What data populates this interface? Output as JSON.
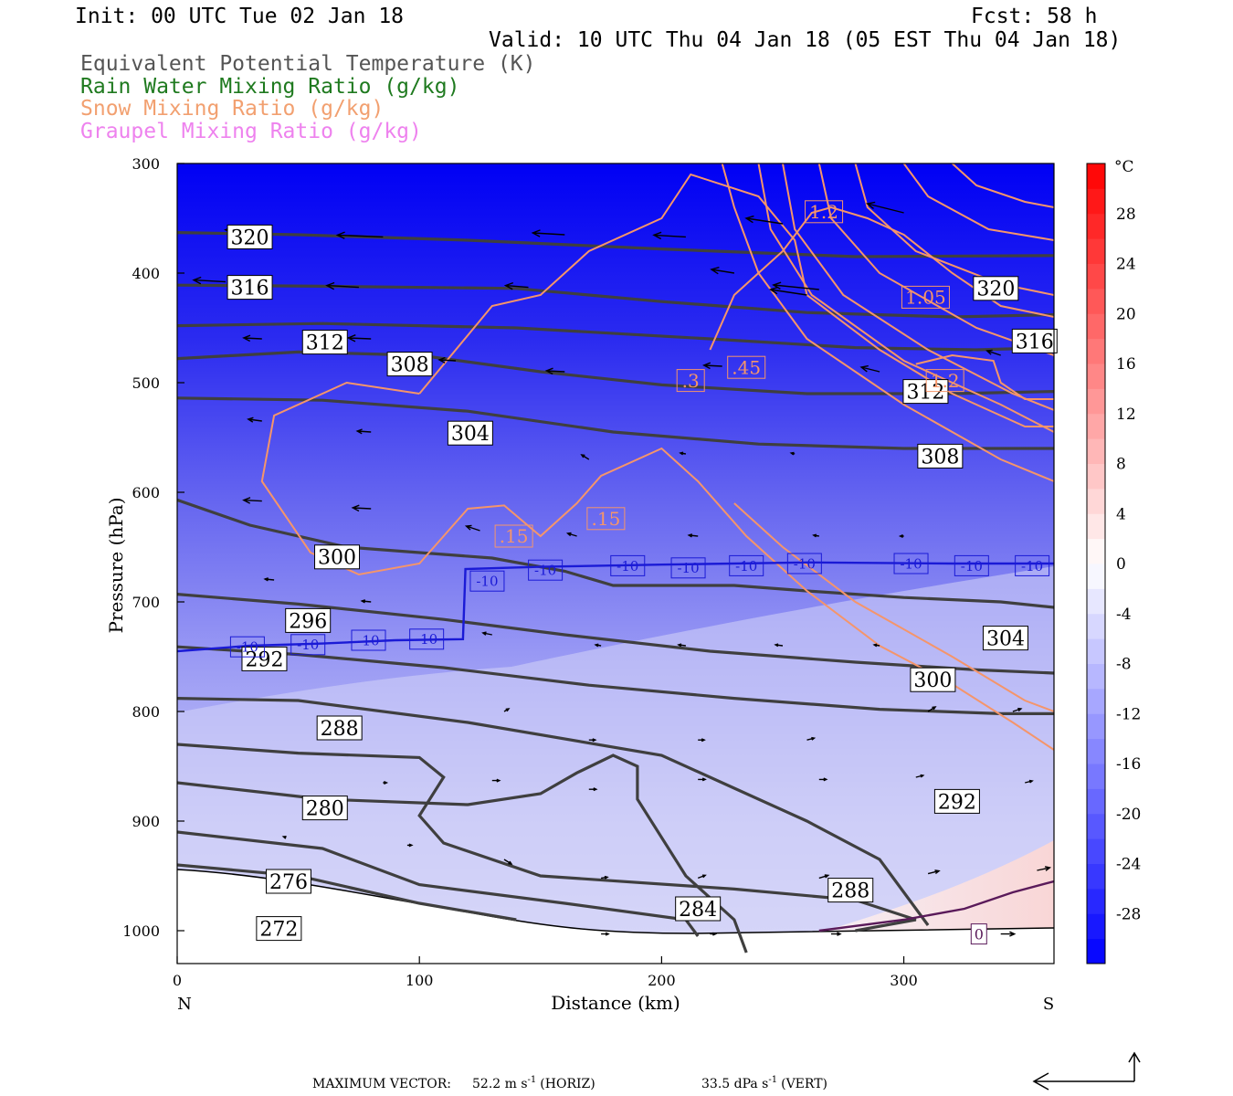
{
  "header": {
    "init": "Init: 00 UTC Tue 02 Jan 18",
    "fcst": "Fcst:   58 h",
    "valid": "Valid: 10 UTC Thu 04 Jan 18 (05 EST Thu 04 Jan 18)",
    "fields": [
      {
        "text": "Equivalent Potential Temperature (K)",
        "color": "#555555"
      },
      {
        "text": "Rain Water Mixing Ratio (g/kg)",
        "color": "#1f7a1f"
      },
      {
        "text": "Snow Mixing Ratio (g/kg)",
        "color": "#f2a070"
      },
      {
        "text": "Graupel Mixing Ratio (g/kg)",
        "color": "#ee82ee"
      }
    ]
  },
  "footer": {
    "max_vector_label": "MAXIMUM VECTOR:",
    "horiz_value": "52.2 m s",
    "horiz_exp": "-1",
    "horiz_tag": "(HORIZ)",
    "vert_value": "33.5 dPa s",
    "vert_exp": "-1",
    "vert_tag": "(VERT)"
  },
  "colors": {
    "theta_e": "#3f3f3f",
    "snow": "#f5956a",
    "temp_line": "#1a1ad6",
    "zero_line": "#5a1a5a",
    "cold": "#0000ff",
    "warm": "#ff0000"
  },
  "chart_data": {
    "type": "heatmap",
    "title": "",
    "xlabel": "Distance (km)",
    "ylabel": "Pressure (hPa)",
    "xlim": [
      0,
      362
    ],
    "ylim": [
      1030,
      300
    ],
    "x_ticks": [
      0,
      100,
      200,
      300
    ],
    "y_ticks": [
      300,
      400,
      500,
      600,
      700,
      800,
      900,
      1000
    ],
    "x_end_labels": {
      "left": "N",
      "right": "S"
    },
    "colorbar": {
      "unit": "°C",
      "ticks": [
        28,
        24,
        20,
        16,
        12,
        8,
        4,
        0,
        -4,
        -8,
        -12,
        -16,
        -20,
        -24,
        -28
      ],
      "range": [
        -32,
        32
      ]
    },
    "theta_e_labels": [
      {
        "value": "320",
        "x": 30,
        "p": 367
      },
      {
        "value": "316",
        "x": 30,
        "p": 413
      },
      {
        "value": "312",
        "x": 61,
        "p": 463
      },
      {
        "value": "308",
        "x": 96,
        "p": 483
      },
      {
        "value": "304",
        "x": 121,
        "p": 546
      },
      {
        "value": "300",
        "x": 66,
        "p": 659
      },
      {
        "value": "296",
        "x": 54,
        "p": 717
      },
      {
        "value": "292",
        "x": 36,
        "p": 752
      },
      {
        "value": "288",
        "x": 67,
        "p": 815
      },
      {
        "value": "280",
        "x": 61,
        "p": 888
      },
      {
        "value": "276",
        "x": 46,
        "p": 955
      },
      {
        "value": "272",
        "x": 42,
        "p": 998
      },
      {
        "value": "320",
        "x": 338,
        "p": 414
      },
      {
        "value": "316",
        "x": 354,
        "p": 462
      },
      {
        "value": "312",
        "x": 309,
        "p": 508
      },
      {
        "value": "308",
        "x": 315,
        "p": 567
      },
      {
        "value": "304",
        "x": 342,
        "p": 733
      },
      {
        "value": "300",
        "x": 312,
        "p": 771
      },
      {
        "value": "292",
        "x": 322,
        "p": 882
      },
      {
        "value": "288",
        "x": 278,
        "p": 963
      },
      {
        "value": "284",
        "x": 215,
        "p": 980
      }
    ],
    "snow_labels": [
      {
        "value": "1.2",
        "x": 267,
        "p": 344
      },
      {
        "value": "1.05",
        "x": 309,
        "p": 422
      },
      {
        "value": ".45",
        "x": 235,
        "p": 486
      },
      {
        "value": ".3",
        "x": 212,
        "p": 498
      },
      {
        "value": "1.2",
        "x": 317,
        "p": 498
      },
      {
        "value": ".15",
        "x": 177,
        "p": 624
      },
      {
        "value": ".15",
        "x": 139,
        "p": 640
      }
    ],
    "temp_labels": [
      {
        "value": "-10",
        "x": 29,
        "p": 741
      },
      {
        "value": "-10",
        "x": 54,
        "p": 739
      },
      {
        "value": "-10",
        "x": 79,
        "p": 735
      },
      {
        "value": "-10",
        "x": 103,
        "p": 734
      },
      {
        "value": "-10",
        "x": 128,
        "p": 681
      },
      {
        "value": "-10",
        "x": 152,
        "p": 671
      },
      {
        "value": "-10",
        "x": 186,
        "p": 667
      },
      {
        "value": "-10",
        "x": 211,
        "p": 669
      },
      {
        "value": "-10",
        "x": 235,
        "p": 667
      },
      {
        "value": "-10",
        "x": 259,
        "p": 665
      },
      {
        "value": "-10",
        "x": 303,
        "p": 665
      },
      {
        "value": "-10",
        "x": 328,
        "p": 667
      },
      {
        "value": "-10",
        "x": 353,
        "p": 667
      },
      {
        "value": "0",
        "x": 331,
        "p": 1003
      }
    ]
  }
}
